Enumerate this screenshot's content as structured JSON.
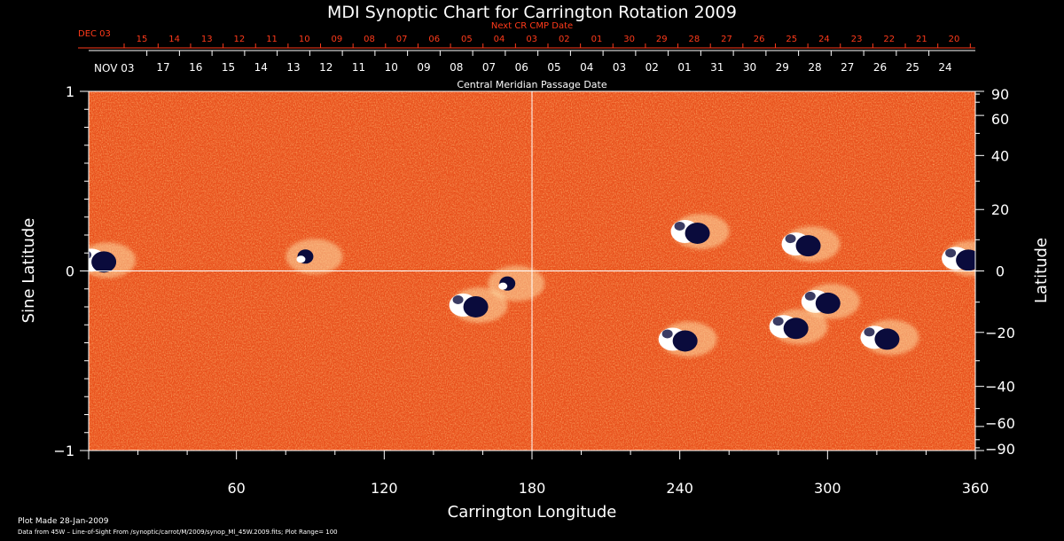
{
  "chart_data": {
    "type": "heatmap",
    "title": "MDI Synoptic Chart for Carrington Rotation 2009",
    "xlabel": "Carrington Longitude",
    "ylabel_left": "Sine Latitude",
    "ylabel_right": "Latitude",
    "xlim": [
      0,
      360
    ],
    "ylim_sine": [
      -1,
      1
    ],
    "x_ticks": [
      60,
      120,
      180,
      240,
      300,
      360
    ],
    "y_ticks_left": [
      {
        "value": 1,
        "label": "1"
      },
      {
        "value": 0,
        "label": "0"
      },
      {
        "value": -1,
        "label": "−1"
      }
    ],
    "y_ticks_right": [
      90,
      60,
      40,
      20,
      0,
      -20,
      -40,
      -60,
      -90
    ],
    "next_cr_axis": {
      "label": "Next CR CMP Date",
      "month": "DEC 03",
      "days": [
        "15",
        "14",
        "13",
        "12",
        "11",
        "10",
        "09",
        "08",
        "07",
        "06",
        "05",
        "04",
        "03",
        "02",
        "01",
        "30",
        "29",
        "28",
        "27",
        "26",
        "25",
        "24",
        "23",
        "22",
        "21",
        "20"
      ],
      "color": "#ff3a1a"
    },
    "cmp_axis": {
      "label": "Central Meridian Passage Date",
      "month": "NOV 03",
      "days": [
        "17",
        "16",
        "15",
        "14",
        "13",
        "12",
        "11",
        "10",
        "09",
        "08",
        "07",
        "06",
        "05",
        "04",
        "03",
        "02",
        "01",
        "31",
        "30",
        "29",
        "28",
        "27",
        "26",
        "25",
        "24"
      ]
    },
    "active_regions": [
      {
        "lon": 4,
        "sinlat": 0.06,
        "polarity": "mixed"
      },
      {
        "lon": 88,
        "sinlat": 0.08,
        "polarity": "negative"
      },
      {
        "lon": 155,
        "sinlat": -0.19,
        "polarity": "mixed"
      },
      {
        "lon": 170,
        "sinlat": -0.07,
        "polarity": "negative"
      },
      {
        "lon": 245,
        "sinlat": 0.22,
        "polarity": "mixed"
      },
      {
        "lon": 240,
        "sinlat": -0.38,
        "polarity": "mixed"
      },
      {
        "lon": 290,
        "sinlat": 0.15,
        "polarity": "mixed"
      },
      {
        "lon": 298,
        "sinlat": -0.17,
        "polarity": "mixed"
      },
      {
        "lon": 285,
        "sinlat": -0.31,
        "polarity": "mixed"
      },
      {
        "lon": 322,
        "sinlat": -0.37,
        "polarity": "mixed"
      },
      {
        "lon": 355,
        "sinlat": 0.07,
        "polarity": "mixed"
      }
    ],
    "colors": {
      "background": "#e8501c",
      "positive": "#ffffff",
      "negative": "#0a0b3c",
      "grid": "#ffffff"
    },
    "footer": {
      "plot_made": "Plot Made 28-Jan-2009",
      "source": "Data from 45W – Line-of-Sight From /synoptic/carrot/M/2009/synop_Ml_45W.2009.fits; Plot Range=  100"
    }
  }
}
